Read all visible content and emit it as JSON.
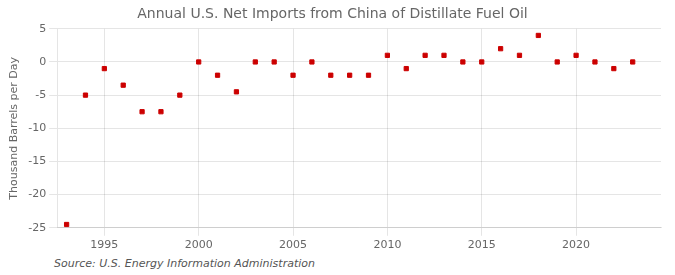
{
  "chart_data": {
    "type": "scatter",
    "title": "Annual U.S. Net Imports from China of Distillate Fuel Oil",
    "ylabel": "Thousand Barrels per Day",
    "annotations": [
      "Source: U.S. Energy Information Administration"
    ],
    "x": [
      1993,
      1994,
      1995,
      1996,
      1997,
      1998,
      1999,
      2000,
      2001,
      2002,
      2003,
      2004,
      2005,
      2006,
      2007,
      2008,
      2009,
      2010,
      2011,
      2012,
      2013,
      2014,
      2015,
      2016,
      2017,
      2018,
      2019,
      2020,
      2021,
      2022,
      2023
    ],
    "values": [
      -24.5,
      -5.0,
      -1.0,
      -3.5,
      -7.5,
      -7.5,
      -5.0,
      0.0,
      -2.0,
      -4.5,
      0.0,
      0.0,
      -2.0,
      0.0,
      -2.0,
      -2.0,
      -2.0,
      1.0,
      -1.0,
      1.0,
      1.0,
      0.0,
      0.0,
      2.0,
      1.0,
      4.0,
      0.0,
      1.0,
      0.0,
      -1.0,
      0.0
    ],
    "color": "#cc0000",
    "marker": "square",
    "xlim": [
      1992.5,
      2024.5
    ],
    "ylim": [
      -25,
      5
    ],
    "xticks": [
      1995,
      2000,
      2005,
      2010,
      2015,
      2020
    ],
    "yticks": [
      -25,
      -20,
      -15,
      -10,
      -5,
      0,
      5
    ],
    "grid": true
  }
}
